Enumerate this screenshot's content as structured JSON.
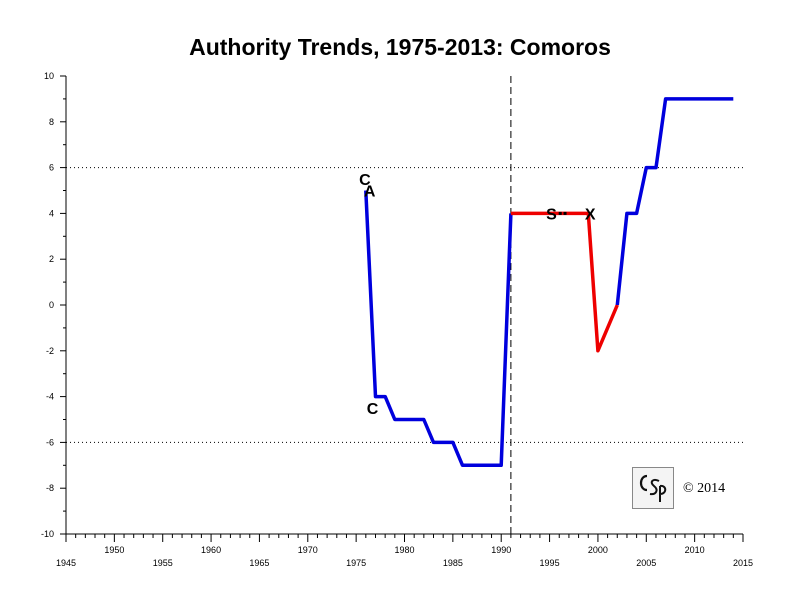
{
  "chart_data": {
    "type": "line",
    "title": "Authority Trends, 1975-2013: Comoros",
    "xlabel": "",
    "ylabel": "",
    "xlim": [
      1945,
      2015
    ],
    "ylim": [
      -10,
      10
    ],
    "x_ticks": [
      1945,
      1950,
      1955,
      1960,
      1965,
      1970,
      1975,
      1980,
      1985,
      1990,
      1995,
      2000,
      2005,
      2010,
      2015
    ],
    "y_ticks": [
      10,
      8,
      6,
      4,
      2,
      0,
      -2,
      -4,
      -6,
      -8,
      -10
    ],
    "reference_lines": [
      {
        "axis": "y",
        "value": 6,
        "style": "dotted"
      },
      {
        "axis": "y",
        "value": -6,
        "style": "dotted"
      },
      {
        "axis": "x",
        "value": 1991,
        "style": "dashed"
      }
    ],
    "series": [
      {
        "color": "#0000dd",
        "points": [
          [
            1976,
            5
          ],
          [
            1977,
            -4
          ],
          [
            1978,
            -4
          ],
          [
            1979,
            -5
          ],
          [
            1982,
            -5
          ],
          [
            1983,
            -6
          ],
          [
            1985,
            -6
          ],
          [
            1986,
            -7
          ],
          [
            1990,
            -7
          ],
          [
            1991,
            4
          ]
        ]
      },
      {
        "color": "#ee0000",
        "points": [
          [
            1991,
            4
          ],
          [
            1999,
            4
          ],
          [
            2000,
            -2
          ],
          [
            2002,
            0
          ]
        ]
      },
      {
        "color": "#0000dd",
        "points": [
          [
            2002,
            0
          ],
          [
            2003,
            4
          ],
          [
            2004,
            4
          ],
          [
            2005,
            6
          ],
          [
            2006,
            6
          ],
          [
            2007,
            9
          ],
          [
            2014,
            9
          ]
        ]
      }
    ],
    "event_markers": [
      {
        "label": "C",
        "x": 1975.9,
        "y": 5.5
      },
      {
        "label": "A",
        "x": 1976.4,
        "y": 5.0
      },
      {
        "label": "C",
        "x": 1976.7,
        "y": -4.5
      },
      {
        "label": "S",
        "x": 1995.2,
        "y": 4.0
      },
      {
        "label": "X",
        "x": 1999.2,
        "y": 4.0
      }
    ]
  },
  "copyright": "© 2014",
  "logo": {
    "text": "CSP"
  }
}
